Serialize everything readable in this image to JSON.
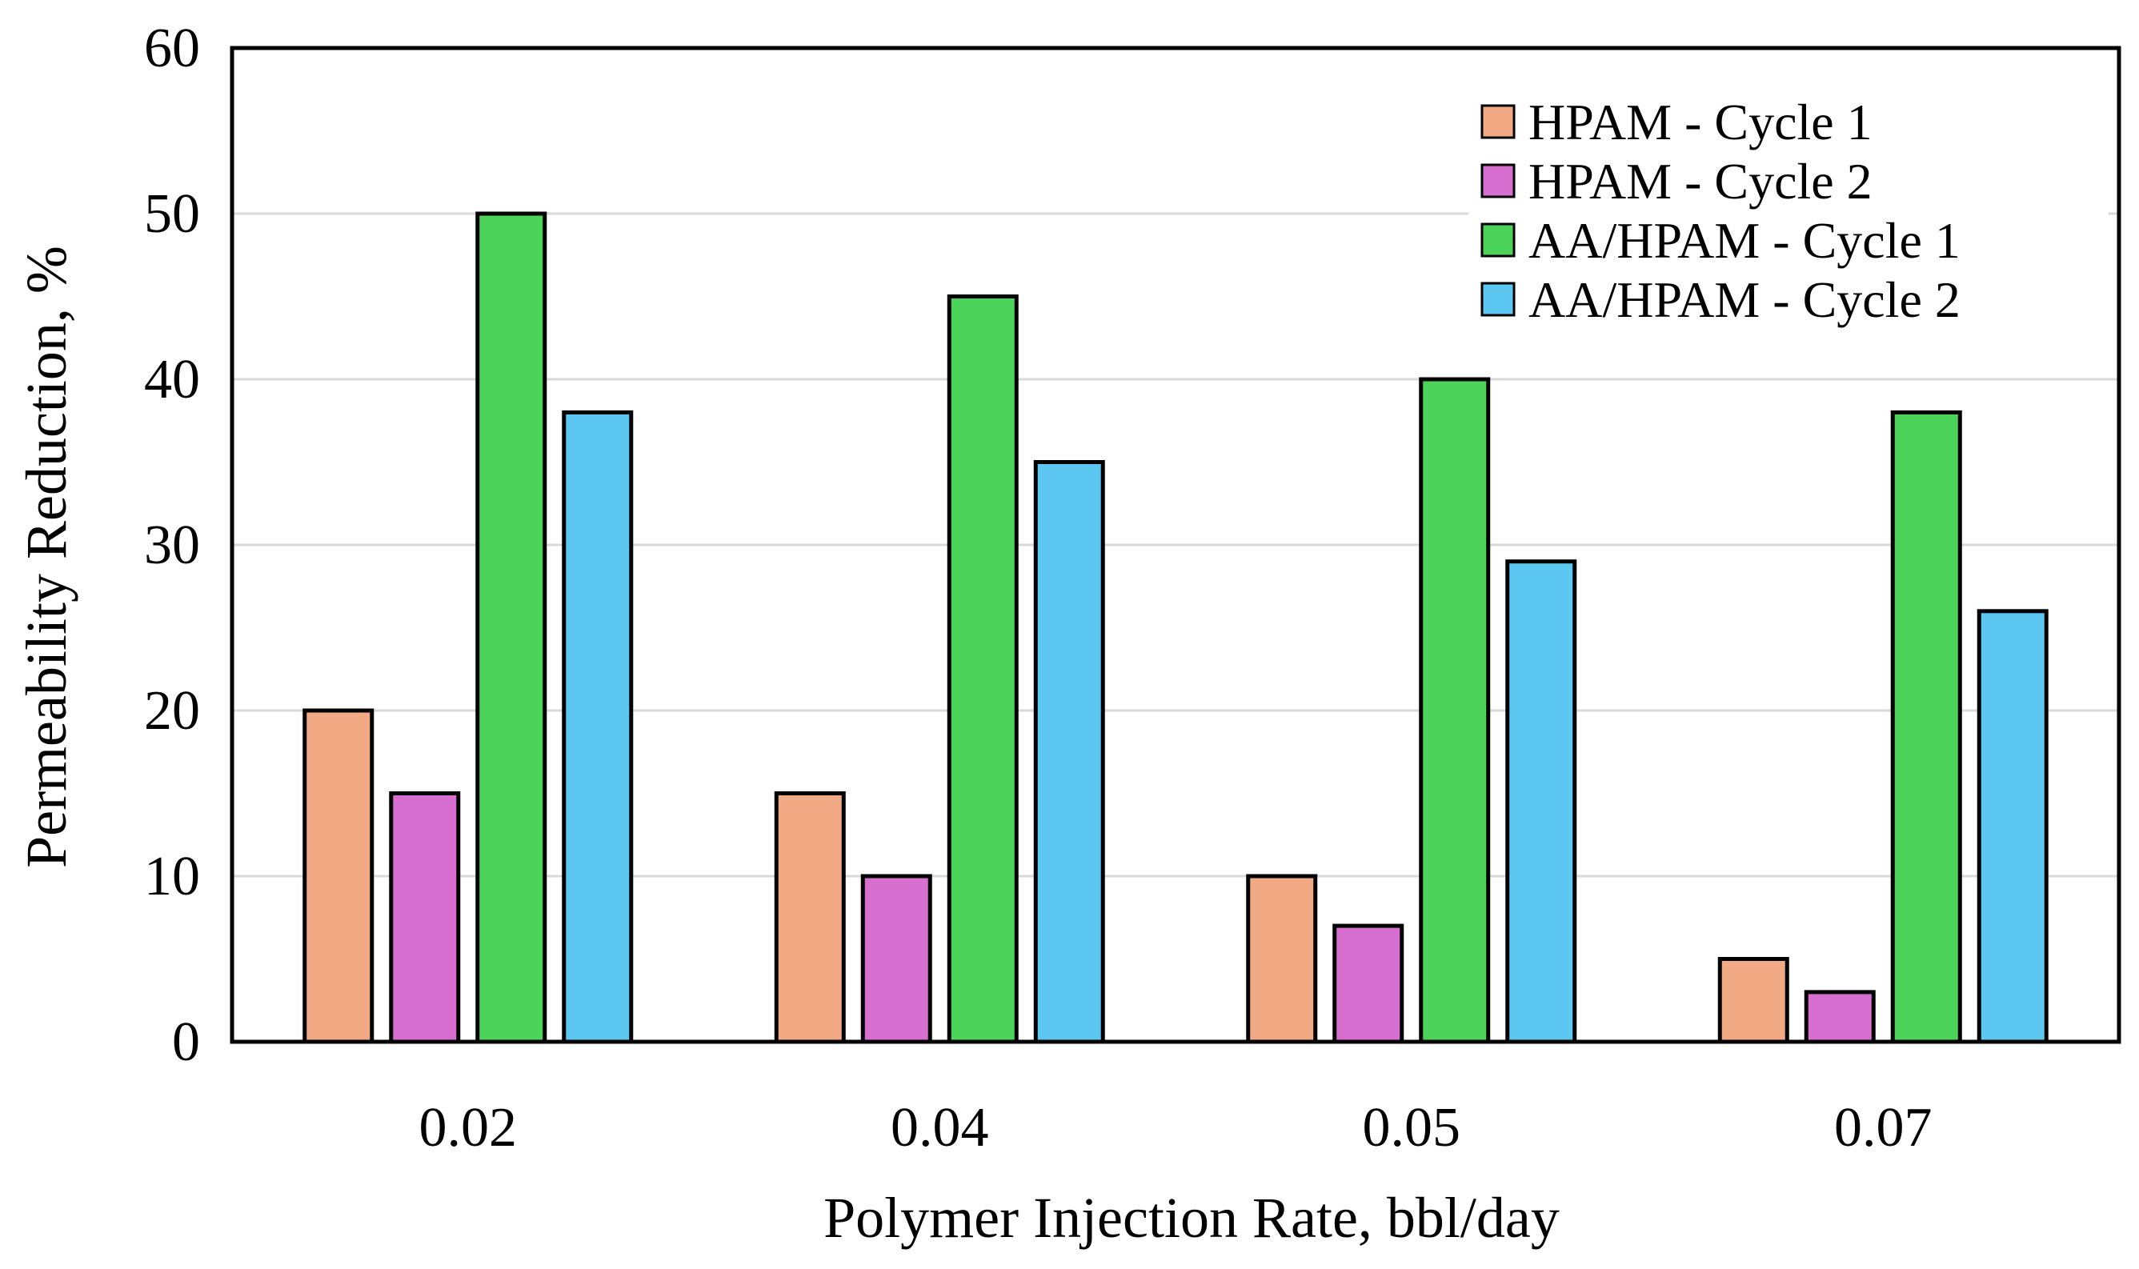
{
  "chart_data": {
    "type": "bar",
    "title": "",
    "xlabel": "Polymer Injection Rate, bbl/day",
    "ylabel": "Permeability Reduction, %",
    "categories": [
      "0.02",
      "0.04",
      "0.05",
      "0.07"
    ],
    "ylim": [
      0,
      60
    ],
    "yticks": [
      0,
      10,
      20,
      30,
      40,
      50,
      60
    ],
    "grid": true,
    "legend_position": "top-right",
    "series": [
      {
        "name": "HPAM - Cycle 1",
        "color": "#F2AA84",
        "values": [
          20,
          15,
          10,
          5
        ]
      },
      {
        "name": "HPAM - Cycle 2",
        "color": "#D66FCF",
        "values": [
          15,
          10,
          7,
          3
        ]
      },
      {
        "name": "AA/HPAM - Cycle 1",
        "color": "#4CD45A",
        "values": [
          50,
          45,
          40,
          38
        ]
      },
      {
        "name": "AA/HPAM - Cycle 2",
        "color": "#5CC8F2",
        "values": [
          38,
          35,
          29,
          26
        ]
      }
    ]
  }
}
